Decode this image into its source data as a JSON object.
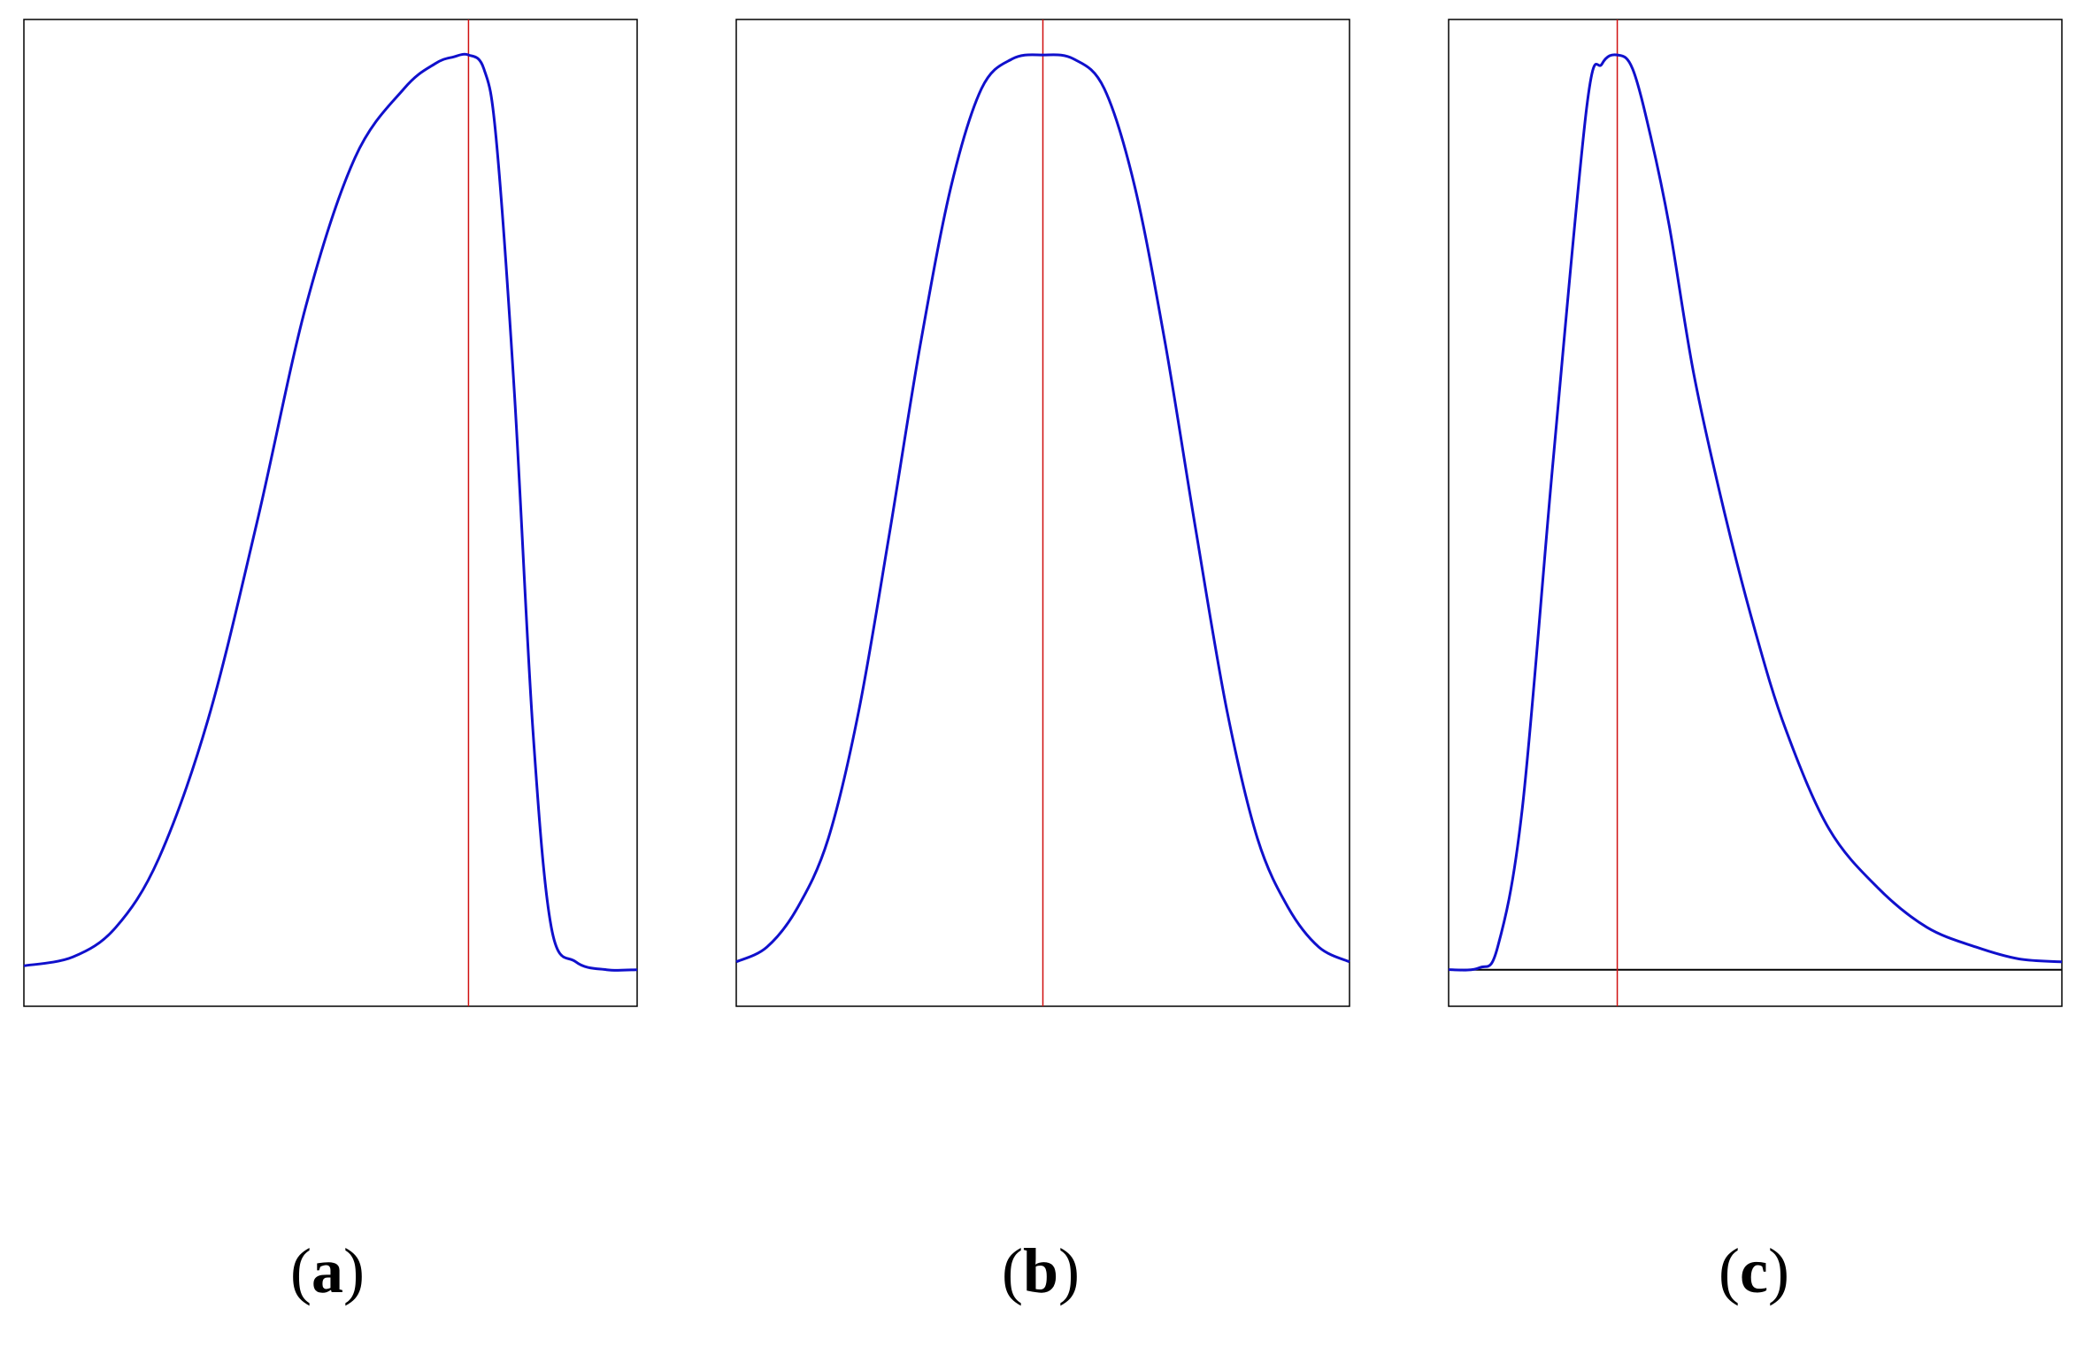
{
  "colors": {
    "curve": "#1010cc",
    "mode_line": "#d01010",
    "frame": "#000000",
    "baseline": "#000000"
  },
  "chart_data": [
    {
      "type": "line",
      "panel_label": "a",
      "description_of_shape": "left-skewed unimodal curve",
      "x_range": [
        0,
        1
      ],
      "y_range": [
        0,
        1
      ],
      "mode_x": 0.725,
      "peak_y": 0.964,
      "series": [
        {
          "x": [
            0.0,
            0.08,
            0.15,
            0.22,
            0.3,
            0.38,
            0.46,
            0.54,
            0.62,
            0.67,
            0.7,
            0.725,
            0.75,
            0.77,
            0.8,
            0.83,
            0.86,
            0.9,
            0.95,
            1.0
          ],
          "y": [
            0.041,
            0.05,
            0.08,
            0.15,
            0.29,
            0.49,
            0.71,
            0.86,
            0.93,
            0.955,
            0.962,
            0.964,
            0.95,
            0.88,
            0.62,
            0.28,
            0.08,
            0.045,
            0.037,
            0.037
          ]
        }
      ]
    },
    {
      "type": "line",
      "panel_label": "b",
      "description_of_shape": "symmetric unimodal curve",
      "x_range": [
        0,
        1
      ],
      "y_range": [
        0,
        1
      ],
      "mode_x": 0.5,
      "peak_y": 0.964,
      "series": [
        {
          "x": [
            0.0,
            0.05,
            0.1,
            0.15,
            0.2,
            0.25,
            0.3,
            0.35,
            0.4,
            0.45,
            0.5,
            0.55,
            0.6,
            0.65,
            0.7,
            0.75,
            0.8,
            0.85,
            0.9,
            0.95,
            1.0
          ],
          "y": [
            0.045,
            0.06,
            0.1,
            0.17,
            0.3,
            0.48,
            0.67,
            0.83,
            0.93,
            0.96,
            0.964,
            0.96,
            0.93,
            0.83,
            0.67,
            0.48,
            0.3,
            0.17,
            0.1,
            0.06,
            0.045
          ]
        }
      ]
    },
    {
      "type": "line",
      "panel_label": "c",
      "description_of_shape": "right-skewed unimodal curve with baseline",
      "x_range": [
        0,
        1
      ],
      "y_range": [
        0,
        1
      ],
      "mode_x": 0.275,
      "peak_y": 0.964,
      "baseline_y": 0.037,
      "series": [
        {
          "x": [
            0.0,
            0.05,
            0.08,
            0.12,
            0.17,
            0.225,
            0.25,
            0.275,
            0.3,
            0.33,
            0.36,
            0.4,
            0.45,
            0.5,
            0.55,
            0.62,
            0.7,
            0.78,
            0.86,
            0.93,
            1.0
          ],
          "y": [
            0.037,
            0.039,
            0.06,
            0.2,
            0.55,
            0.91,
            0.955,
            0.964,
            0.95,
            0.88,
            0.79,
            0.64,
            0.5,
            0.38,
            0.28,
            0.18,
            0.12,
            0.08,
            0.06,
            0.048,
            0.045
          ]
        }
      ]
    }
  ]
}
